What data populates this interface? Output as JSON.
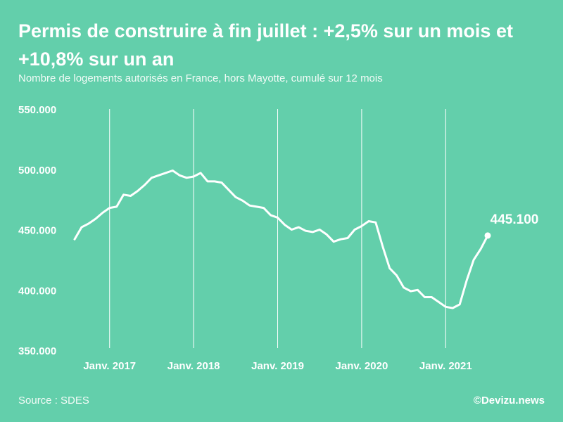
{
  "header": {
    "title": "Permis de construire à fin juillet : +2,5% sur un mois et +10,8% sur un an",
    "subtitle": "Nombre de logements autorisés en France, hors Mayotte, cumulé sur 12 mois"
  },
  "footer": {
    "source": "Source : SDES",
    "credit": "©Devizu.news"
  },
  "colors": {
    "background": "#63cfab",
    "line": "#ffffff"
  },
  "chart_data": {
    "type": "line",
    "title": "Permis de construire à fin juillet : +2,5% sur un mois et +10,8% sur un an",
    "subtitle": "Nombre de logements autorisés en France, hors Mayotte, cumulé sur 12 mois",
    "xlabel": "",
    "ylabel": "",
    "ylim": [
      350000,
      550000
    ],
    "yticks": [
      550000,
      500000,
      450000,
      400000,
      350000
    ],
    "ytick_labels": [
      "550.000",
      "500.000",
      "450.000",
      "400.000",
      "350.000"
    ],
    "x_period": "monthly, Août 2016 – Juillet 2021",
    "xtick_index": [
      5,
      17,
      29,
      41,
      53
    ],
    "xtick_labels": [
      "Janv. 2017",
      "Janv. 2018",
      "Janv. 2019",
      "Janv. 2020",
      "Janv. 2021"
    ],
    "vertical_grid": true,
    "series": [
      {
        "name": "Logements autorisés (cumul 12 mois)",
        "values": [
          442000,
          452000,
          455000,
          459000,
          464000,
          468000,
          469000,
          479000,
          478000,
          482000,
          487000,
          493000,
          495000,
          497000,
          499000,
          495000,
          493000,
          494000,
          497000,
          490000,
          490000,
          489000,
          483000,
          477000,
          474000,
          470000,
          469000,
          468000,
          462000,
          460000,
          454000,
          450000,
          452000,
          449000,
          448000,
          450000,
          446000,
          440000,
          442000,
          443000,
          450000,
          453000,
          457000,
          456000,
          436000,
          418000,
          412000,
          402000,
          399000,
          400000,
          394000,
          394000,
          390000,
          386000,
          385000,
          388000,
          408000,
          425000,
          434000,
          445100
        ]
      }
    ],
    "annotations": [
      {
        "point_index": 59,
        "label": "445.100"
      }
    ]
  }
}
